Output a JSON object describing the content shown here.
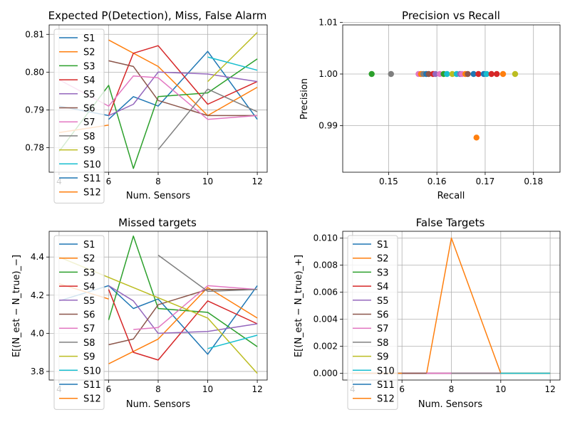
{
  "colors": [
    "#1f77b4",
    "#ff7f0e",
    "#2ca02c",
    "#d62728",
    "#9467bd",
    "#8c564b",
    "#e377c2",
    "#7f7f7f",
    "#bcbd22",
    "#17becf",
    "#1f77b4",
    "#ff7f0e"
  ],
  "chart_data": [
    {
      "type": "line",
      "title": "Expected P(Detection), Miss, False Alarm",
      "xlabel": "Num. Sensors",
      "ylabel": "",
      "xlim": [
        3.6,
        12.4
      ],
      "ylim": [
        0.7735,
        0.8125
      ],
      "xticks": [
        4,
        6,
        8,
        10,
        12
      ],
      "xtick_labels": [
        "4",
        "6",
        "8",
        "10",
        "12"
      ],
      "yticks": [
        0.78,
        0.79,
        0.8,
        0.81
      ],
      "ytick_labels": [
        "0.78",
        "0.79",
        "0.80",
        "0.81"
      ],
      "grid": true,
      "legend": "upper-left",
      "series": [
        {
          "name": "S1",
          "x": [
            6,
            7,
            8,
            10,
            12
          ],
          "y": [
            0.7875,
            0.7935,
            0.791,
            0.8055,
            0.7875
          ]
        },
        {
          "name": "S2",
          "x": [
            6,
            8,
            10,
            12
          ],
          "y": [
            0.8085,
            0.8015,
            0.7885,
            0.796
          ]
        },
        {
          "name": "S3",
          "x": [
            4,
            6,
            7,
            8,
            10,
            12
          ],
          "y": [
            0.779,
            0.7965,
            0.7745,
            0.7935,
            0.7945,
            0.8035
          ]
        },
        {
          "name": "S4",
          "x": [
            6,
            7,
            8,
            10,
            12
          ],
          "y": [
            0.7885,
            0.805,
            0.807,
            0.7915,
            0.7975
          ]
        },
        {
          "name": "S5",
          "x": [
            6,
            7,
            8,
            10,
            12
          ],
          "y": [
            0.7885,
            0.7915,
            0.8,
            0.7995,
            0.7975
          ]
        },
        {
          "name": "S6",
          "x": [
            6,
            7,
            8,
            10,
            12
          ],
          "y": [
            0.803,
            0.8015,
            0.7925,
            0.7885,
            0.7885
          ]
        },
        {
          "name": "S7",
          "x": [
            4,
            6,
            7,
            8,
            10,
            12
          ],
          "y": [
            0.798,
            0.791,
            0.799,
            0.7985,
            0.7875,
            0.7885
          ]
        },
        {
          "name": "S8",
          "x": [
            8,
            10,
            12
          ],
          "y": [
            0.7795,
            0.7955,
            0.7895
          ]
        },
        {
          "name": "S9",
          "x": [
            10,
            12
          ],
          "y": [
            0.7975,
            0.8105
          ]
        },
        {
          "name": "S10",
          "x": [
            10,
            12
          ],
          "y": [
            0.804,
            0.8005
          ]
        },
        {
          "name": "S11",
          "x": [
            4,
            6
          ],
          "y": [
            0.791,
            0.7885
          ]
        },
        {
          "name": "S12",
          "x": [
            4,
            6
          ],
          "y": [
            0.784,
            0.786
          ]
        }
      ]
    },
    {
      "type": "scatter",
      "title": "Precision vs Recall",
      "xlabel": "Recall",
      "ylabel": "Precision",
      "xlim": [
        0.1405,
        0.1855
      ],
      "ylim": [
        0.981,
        1.0095
      ],
      "xticks": [
        0.15,
        0.16,
        0.17,
        0.18
      ],
      "xtick_labels": [
        "0.15",
        "0.16",
        "0.17",
        "0.18"
      ],
      "yticks": [
        0.99,
        1.0,
        1.01
      ],
      "ytick_labels": [
        "0.99",
        "1.00",
        "1.01"
      ],
      "grid": true,
      "points": [
        {
          "x": 0.1465,
          "y": 1.0,
          "c": 2
        },
        {
          "x": 0.1505,
          "y": 1.0,
          "c": 7
        },
        {
          "x": 0.1562,
          "y": 1.0,
          "c": 6
        },
        {
          "x": 0.1567,
          "y": 1.0,
          "c": 1
        },
        {
          "x": 0.1572,
          "y": 1.0,
          "c": 7
        },
        {
          "x": 0.1578,
          "y": 1.0,
          "c": 0
        },
        {
          "x": 0.1583,
          "y": 1.0,
          "c": 5
        },
        {
          "x": 0.1592,
          "y": 1.0,
          "c": 3
        },
        {
          "x": 0.1597,
          "y": 1.0,
          "c": 4
        },
        {
          "x": 0.1606,
          "y": 1.0,
          "c": 6
        },
        {
          "x": 0.1614,
          "y": 1.0,
          "c": 2
        },
        {
          "x": 0.1621,
          "y": 1.0,
          "c": 9
        },
        {
          "x": 0.1632,
          "y": 1.0,
          "c": 8
        },
        {
          "x": 0.1641,
          "y": 1.0,
          "c": 9
        },
        {
          "x": 0.1648,
          "y": 1.0,
          "c": 4
        },
        {
          "x": 0.1652,
          "y": 1.0,
          "c": 6
        },
        {
          "x": 0.1659,
          "y": 1.0,
          "c": 1
        },
        {
          "x": 0.1664,
          "y": 1.0,
          "c": 5
        },
        {
          "x": 0.1676,
          "y": 1.0,
          "c": 0
        },
        {
          "x": 0.1686,
          "y": 1.0,
          "c": 3
        },
        {
          "x": 0.1697,
          "y": 1.0,
          "c": 0
        },
        {
          "x": 0.1703,
          "y": 1.0,
          "c": 9
        },
        {
          "x": 0.1713,
          "y": 1.0,
          "c": 3
        },
        {
          "x": 0.1724,
          "y": 1.0,
          "c": 3
        },
        {
          "x": 0.1737,
          "y": 1.0,
          "c": 1
        },
        {
          "x": 0.1762,
          "y": 1.0,
          "c": 8
        },
        {
          "x": 0.1682,
          "y": 0.9877,
          "c": 1
        }
      ]
    },
    {
      "type": "line",
      "title": "Missed targets",
      "xlabel": "Num. Sensors",
      "ylabel": "E[(N_est − N_true)_−]",
      "xlim": [
        3.6,
        12.4
      ],
      "ylim": [
        3.755,
        4.535
      ],
      "xticks": [
        4,
        6,
        8,
        10,
        12
      ],
      "xtick_labels": [
        "4",
        "6",
        "8",
        "10",
        "12"
      ],
      "yticks": [
        3.8,
        4.0,
        4.2,
        4.4
      ],
      "ytick_labels": [
        "3.8",
        "4.0",
        "4.2",
        "4.4"
      ],
      "grid": true,
      "legend": "upper-left",
      "series": [
        {
          "name": "S1",
          "x": [
            6,
            7,
            8,
            10,
            12
          ],
          "y": [
            4.25,
            4.13,
            4.18,
            3.89,
            4.25
          ]
        },
        {
          "name": "S2",
          "x": [
            6,
            8,
            10,
            12
          ],
          "y": [
            3.84,
            3.97,
            4.24,
            4.08
          ]
        },
        {
          "name": "S3",
          "x": [
            6,
            7,
            8,
            10,
            12
          ],
          "y": [
            4.07,
            4.51,
            4.13,
            4.11,
            3.93
          ]
        },
        {
          "name": "S4",
          "x": [
            6,
            7,
            8,
            10,
            12
          ],
          "y": [
            4.23,
            3.9,
            3.86,
            4.17,
            4.05
          ]
        },
        {
          "name": "S5",
          "x": [
            6,
            7,
            8,
            10,
            12
          ],
          "y": [
            4.25,
            4.17,
            4.0,
            4.01,
            4.05
          ]
        },
        {
          "name": "S6",
          "x": [
            6,
            7,
            8,
            10,
            12
          ],
          "y": [
            3.94,
            3.97,
            4.15,
            4.23,
            4.23
          ]
        },
        {
          "name": "S7",
          "x": [
            7,
            8,
            10,
            12
          ],
          "y": [
            4.02,
            4.03,
            4.25,
            4.23
          ]
        },
        {
          "name": "S8",
          "x": [
            8,
            10,
            12
          ],
          "y": [
            4.41,
            4.22,
            4.23
          ]
        },
        {
          "name": "S9",
          "x": [
            4,
            10,
            12
          ],
          "y": [
            4.4,
            4.08,
            3.79
          ]
        },
        {
          "name": "S10",
          "x": [
            10,
            12
          ],
          "y": [
            3.92,
            3.99
          ]
        },
        {
          "name": "S11",
          "x": [
            4,
            6
          ],
          "y": [
            4.17,
            4.25
          ]
        },
        {
          "name": "S12",
          "x": [
            4,
            6
          ],
          "y": [
            4.26,
            4.18
          ]
        }
      ]
    },
    {
      "type": "line",
      "title": "False Targets",
      "xlabel": "Num. Sensors",
      "ylabel": "E[(N_est − N_true)_+]",
      "xlim": [
        3.6,
        12.4
      ],
      "ylim": [
        -0.0005,
        0.0105
      ],
      "xticks": [
        4,
        6,
        8,
        10,
        12
      ],
      "xtick_labels": [
        "4",
        "6",
        "8",
        "10",
        "12"
      ],
      "yticks": [
        0.0,
        0.002,
        0.004,
        0.006,
        0.008,
        0.01
      ],
      "ytick_labels": [
        "0.000",
        "0.002",
        "0.004",
        "0.006",
        "0.008",
        "0.010"
      ],
      "grid": true,
      "legend": "upper-left",
      "series": [
        {
          "name": "S1",
          "x": [
            4,
            12
          ],
          "y": [
            0,
            0
          ]
        },
        {
          "name": "S2",
          "x": [
            7,
            8,
            10,
            12
          ],
          "y": [
            0,
            0.01,
            0,
            0
          ]
        },
        {
          "name": "S3",
          "x": [
            4,
            12
          ],
          "y": [
            0,
            0
          ]
        },
        {
          "name": "S4",
          "x": [
            4,
            12
          ],
          "y": [
            0,
            0
          ]
        },
        {
          "name": "S5",
          "x": [
            4,
            12
          ],
          "y": [
            0,
            0
          ]
        },
        {
          "name": "S6",
          "x": [
            4,
            7
          ],
          "y": [
            0,
            0
          ]
        },
        {
          "name": "S7",
          "x": [
            7,
            10
          ],
          "y": [
            0,
            0
          ]
        },
        {
          "name": "S8",
          "x": [
            8,
            12
          ],
          "y": [
            0,
            0
          ]
        },
        {
          "name": "S9",
          "x": [
            10,
            12
          ],
          "y": [
            0,
            0
          ]
        },
        {
          "name": "S10",
          "x": [
            10,
            12
          ],
          "y": [
            0,
            0
          ]
        },
        {
          "name": "S11",
          "x": [
            4,
            6
          ],
          "y": [
            0,
            0
          ]
        },
        {
          "name": "S12",
          "x": [
            4,
            6
          ],
          "y": [
            0,
            0
          ]
        }
      ]
    }
  ]
}
